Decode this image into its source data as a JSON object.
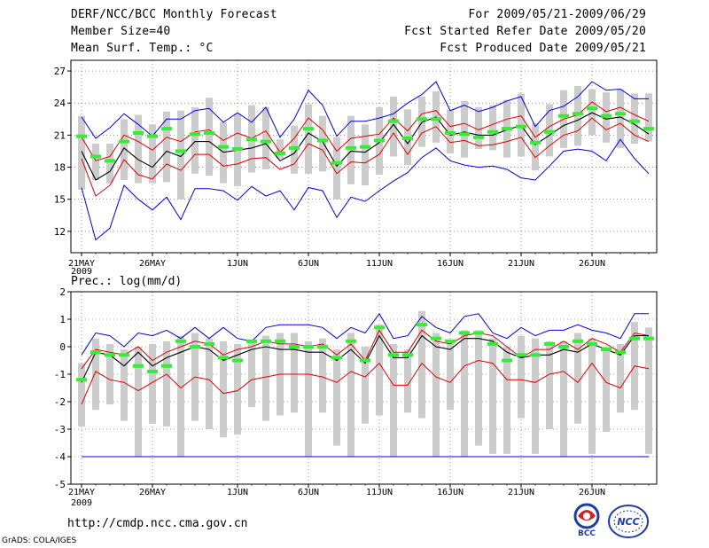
{
  "header": {
    "title": "DERF/NCC/BCC Monthly Forecast",
    "member_size": "Member Size=40",
    "variable": "Mean Surf. Temp.: °C",
    "period": "For 2009/05/21-2009/06/29",
    "fcst_started": "Fcst Started Refer Date 2009/05/20",
    "fcst_produced": "Fcst Produced Date 2009/05/21"
  },
  "footer": {
    "url": "http://cmdp.ncc.cma.gov.cn",
    "grads": "GrADS: COLA/IGES",
    "logo_left_text": "BCC",
    "logo_right_text": "NCC"
  },
  "colors": {
    "spread": "#0000dd",
    "band": "#dd0000",
    "mean": "#000000",
    "box": "#cccccc",
    "obs": "#33ee33"
  },
  "chart_data": [
    {
      "type": "line",
      "title": "Mean Surf. Temp.: °C",
      "x_ticks": [
        "21MAY",
        "26MAY",
        "1JUN",
        "6JUN",
        "11JUN",
        "16JUN",
        "21JUN",
        "26JUN"
      ],
      "x_tick_index": [
        0,
        5,
        11,
        16,
        21,
        26,
        31,
        36
      ],
      "year_label": "2009",
      "ylim": [
        10,
        28
      ],
      "yticks": [
        12,
        15,
        18,
        21,
        24,
        27
      ],
      "series": [
        {
          "name": "max",
          "color": "#0000dd",
          "values": [
            22.7,
            20.7,
            21.7,
            23.0,
            22.0,
            20.9,
            22.5,
            22.5,
            23.3,
            23.5,
            22.2,
            23.1,
            22.2,
            23.6,
            20.8,
            22.5,
            25.2,
            23.8,
            20.9,
            22.3,
            22.3,
            22.6,
            23.0,
            24.0,
            24.8,
            26.0,
            23.3,
            23.8,
            23.2,
            23.6,
            24.2,
            24.6,
            21.8,
            23.3,
            23.7,
            24.6,
            26.0,
            25.2,
            25.3,
            24.4,
            24.4
          ]
        },
        {
          "name": "upper",
          "color": "#dd0000",
          "values": [
            20.8,
            18.6,
            19.0,
            21.0,
            20.4,
            19.6,
            20.8,
            20.4,
            21.3,
            21.5,
            20.5,
            21.2,
            20.7,
            21.4,
            19.4,
            20.7,
            22.6,
            21.5,
            19.5,
            20.7,
            20.9,
            21.1,
            22.6,
            21.4,
            23.0,
            23.3,
            21.8,
            22.1,
            21.5,
            22.0,
            22.5,
            22.8,
            20.8,
            21.8,
            22.5,
            22.9,
            24.1,
            23.2,
            23.6,
            22.9,
            22.3
          ]
        },
        {
          "name": "mean",
          "color": "#000000",
          "values": [
            19.5,
            16.8,
            17.6,
            19.8,
            18.7,
            18.0,
            19.5,
            19.0,
            20.4,
            20.4,
            19.4,
            19.6,
            19.8,
            20.2,
            18.6,
            19.3,
            21.2,
            20.4,
            18.1,
            19.5,
            19.4,
            20.3,
            22.0,
            20.2,
            22.2,
            22.7,
            21.0,
            21.3,
            21.0,
            21.0,
            21.5,
            21.9,
            20.1,
            21.0,
            21.9,
            22.4,
            23.1,
            22.5,
            22.7,
            22.0,
            21.1
          ]
        },
        {
          "name": "lower",
          "color": "#dd0000",
          "values": [
            18.8,
            15.3,
            16.3,
            18.7,
            17.3,
            16.9,
            18.3,
            17.7,
            19.2,
            19.2,
            18.1,
            18.3,
            18.8,
            18.9,
            17.8,
            18.3,
            20.2,
            19.6,
            17.4,
            18.5,
            18.4,
            19.2,
            21.2,
            19.2,
            21.2,
            21.8,
            20.3,
            20.5,
            20.0,
            20.1,
            20.4,
            20.8,
            18.9,
            20.0,
            21.0,
            21.4,
            22.6,
            21.5,
            22.1,
            21.0,
            20.4
          ]
        },
        {
          "name": "min",
          "color": "#0000dd",
          "values": [
            16.1,
            11.2,
            12.3,
            16.3,
            15.0,
            14.0,
            15.2,
            13.1,
            16.0,
            16.0,
            15.8,
            14.9,
            16.2,
            15.3,
            15.8,
            14.0,
            16.1,
            15.8,
            13.3,
            15.2,
            14.8,
            15.8,
            16.7,
            17.5,
            18.9,
            19.8,
            18.6,
            18.2,
            18.0,
            18.1,
            17.8,
            17.0,
            16.8,
            18.1,
            19.5,
            19.7,
            19.5,
            18.6,
            20.6,
            18.8,
            17.4
          ]
        },
        {
          "name": "box_top",
          "color": "#cccccc",
          "values": [
            22.8,
            20.2,
            20.2,
            22.5,
            22.9,
            22.0,
            23.2,
            23.3,
            23.6,
            24.5,
            22.2,
            23.0,
            23.8,
            23.6,
            20.6,
            21.9,
            23.9,
            22.8,
            20.8,
            22.8,
            22.0,
            23.6,
            24.6,
            23.4,
            24.6,
            25.1,
            23.4,
            24.2,
            23.6,
            23.8,
            24.3,
            24.9,
            22.1,
            23.9,
            25.2,
            25.6,
            25.3,
            25.0,
            25.3,
            24.9,
            24.9
          ]
        },
        {
          "name": "box_bottom",
          "color": "#cccccc",
          "values": [
            15.9,
            16.8,
            16.5,
            16.8,
            16.5,
            16.5,
            16.6,
            15.0,
            17.4,
            17.2,
            16.5,
            16.2,
            17.5,
            17.8,
            18.8,
            17.4,
            17.4,
            17.6,
            15.0,
            16.4,
            16.3,
            17.3,
            19.0,
            18.2,
            19.9,
            20.3,
            19.3,
            18.9,
            19.7,
            19.6,
            18.9,
            19.0,
            17.7,
            19.0,
            19.8,
            20.0,
            21.0,
            20.3,
            19.8,
            20.2,
            20.4
          ]
        },
        {
          "name": "obs",
          "color": "#33ee33",
          "values": [
            20.9,
            19.0,
            18.6,
            20.4,
            21.2,
            20.9,
            21.6,
            19.5,
            21.1,
            21.2,
            19.9,
            19.7,
            20.6,
            20.4,
            19.3,
            19.8,
            21.6,
            20.5,
            18.4,
            19.8,
            19.9,
            20.5,
            22.3,
            20.7,
            22.5,
            22.5,
            21.2,
            21.1,
            20.8,
            21.3,
            21.6,
            21.8,
            20.3,
            21.3,
            22.8,
            23.0,
            23.5,
            22.8,
            23.0,
            22.3,
            21.6
          ]
        }
      ]
    },
    {
      "type": "line",
      "title": "Prec.: log(mm/d)",
      "x_ticks": [
        "21MAY",
        "26MAY",
        "1JUN",
        "6JUN",
        "11JUN",
        "16JUN",
        "21JUN",
        "26JUN"
      ],
      "x_tick_index": [
        0,
        5,
        11,
        16,
        21,
        26,
        31,
        36
      ],
      "year_label": "2009",
      "ylim": [
        -5,
        2
      ],
      "yticks": [
        -5,
        -4,
        -3,
        -2,
        -1,
        0,
        1,
        2
      ],
      "series": [
        {
          "name": "max",
          "color": "#0000dd",
          "values": [
            -0.3,
            0.5,
            0.4,
            0.0,
            0.5,
            0.4,
            0.6,
            0.3,
            0.7,
            0.3,
            0.7,
            0.3,
            0.2,
            0.7,
            0.8,
            0.8,
            0.8,
            0.7,
            0.3,
            0.7,
            0.5,
            1.2,
            0.3,
            0.4,
            1.1,
            0.7,
            0.5,
            1.1,
            1.2,
            0.5,
            0.3,
            0.7,
            0.4,
            0.6,
            0.6,
            0.8,
            0.6,
            0.5,
            0.3,
            1.2,
            1.2
          ]
        },
        {
          "name": "upper",
          "color": "#dd0000",
          "values": [
            -0.8,
            -0.1,
            -0.2,
            -0.3,
            0.0,
            -0.5,
            -0.2,
            0.0,
            0.2,
            0.1,
            -0.3,
            -0.1,
            0.0,
            0.2,
            0.1,
            0.1,
            0.0,
            0.1,
            -0.3,
            0.1,
            -0.5,
            0.6,
            -0.2,
            -0.2,
            0.6,
            0.2,
            0.1,
            0.4,
            0.5,
            0.4,
            0.0,
            -0.4,
            -0.1,
            -0.1,
            0.2,
            -0.1,
            0.3,
            0.1,
            -0.2,
            0.5,
            0.4
          ]
        },
        {
          "name": "mean",
          "color": "#000000",
          "values": [
            -1.3,
            -0.2,
            -0.3,
            -0.7,
            -0.2,
            -0.7,
            -0.4,
            -0.2,
            0.0,
            -0.1,
            -0.5,
            -0.3,
            -0.1,
            0.0,
            -0.1,
            -0.1,
            -0.2,
            -0.2,
            -0.5,
            -0.1,
            -0.6,
            0.4,
            -0.4,
            -0.4,
            0.4,
            0.0,
            -0.1,
            0.3,
            0.3,
            0.2,
            -0.2,
            -0.4,
            -0.3,
            -0.3,
            -0.1,
            -0.2,
            0.1,
            -0.1,
            -0.3,
            0.4,
            0.4
          ]
        },
        {
          "name": "lower",
          "color": "#dd0000",
          "values": [
            -2.1,
            -0.9,
            -1.2,
            -1.3,
            -1.6,
            -1.3,
            -1.0,
            -1.5,
            -1.1,
            -1.2,
            -1.7,
            -1.6,
            -1.2,
            -1.1,
            -1.0,
            -1.0,
            -1.0,
            -1.1,
            -1.3,
            -0.9,
            -1.1,
            -0.6,
            -1.4,
            -1.4,
            -0.6,
            -1.1,
            -1.3,
            -0.7,
            -0.5,
            -0.6,
            -1.2,
            -1.2,
            -1.3,
            -1.0,
            -0.9,
            -1.3,
            -0.6,
            -1.3,
            -1.5,
            -0.7,
            -0.8
          ]
        },
        {
          "name": "min",
          "color": "#0000dd",
          "values": [
            -4.0,
            -4.0,
            -4.0,
            -4.0,
            -4.0,
            -4.0,
            -4.0,
            -4.0,
            -4.0,
            -4.0,
            -4.0,
            -4.0,
            -4.0,
            -4.0,
            -4.0,
            -4.0,
            -4.0,
            -4.0,
            -4.0,
            -4.0,
            -4.0,
            -4.0,
            -4.0,
            -4.0,
            -4.0,
            -4.0,
            -4.0,
            -4.0,
            -4.0,
            -4.0,
            -4.0,
            -4.0,
            -4.0,
            -4.0,
            -4.0,
            -4.0,
            -4.0,
            -4.0,
            -4.0,
            -4.0,
            -4.0
          ]
        },
        {
          "name": "box_top",
          "color": "#cccccc",
          "values": [
            -0.6,
            0.3,
            0.1,
            -0.1,
            0.0,
            0.1,
            0.2,
            0.4,
            0.5,
            0.3,
            0.2,
            0.1,
            0.2,
            0.4,
            0.5,
            0.5,
            0.2,
            0.3,
            -0.1,
            0.5,
            0.0,
            0.8,
            0.1,
            -0.1,
            1.3,
            0.5,
            0.2,
            0.6,
            0.6,
            0.3,
            0.0,
            0.4,
            0.3,
            0.2,
            0.2,
            0.5,
            0.3,
            0.0,
            0.1,
            0.9,
            0.7
          ]
        },
        {
          "name": "box_bottom",
          "color": "#cccccc",
          "values": [
            -2.9,
            -2.3,
            -2.1,
            -2.7,
            -4.0,
            -2.8,
            -2.9,
            -4.0,
            -2.7,
            -3.0,
            -3.3,
            -3.2,
            -2.2,
            -2.7,
            -2.5,
            -2.4,
            -4.0,
            -2.4,
            -3.6,
            -4.0,
            -2.8,
            -2.5,
            -4.0,
            -2.4,
            -2.6,
            -4.0,
            -2.3,
            -4.0,
            -3.6,
            -3.9,
            -3.9,
            -2.6,
            -3.9,
            -3.0,
            -4.0,
            -2.8,
            -3.9,
            -3.1,
            -2.4,
            -2.3,
            -3.9
          ]
        },
        {
          "name": "obs",
          "color": "#33ee33",
          "values": [
            -1.2,
            -0.2,
            -0.3,
            -0.3,
            -0.7,
            -0.9,
            -0.7,
            0.2,
            0.0,
            0.1,
            -0.4,
            -0.5,
            0.2,
            0.2,
            0.2,
            0.0,
            0.0,
            0.0,
            -0.4,
            0.2,
            -0.5,
            0.7,
            -0.3,
            -0.3,
            0.8,
            0.3,
            0.2,
            0.5,
            0.5,
            0.1,
            -0.5,
            -0.3,
            -0.3,
            0.1,
            0.0,
            0.2,
            0.1,
            -0.1,
            -0.2,
            0.3,
            0.3
          ]
        }
      ]
    }
  ]
}
